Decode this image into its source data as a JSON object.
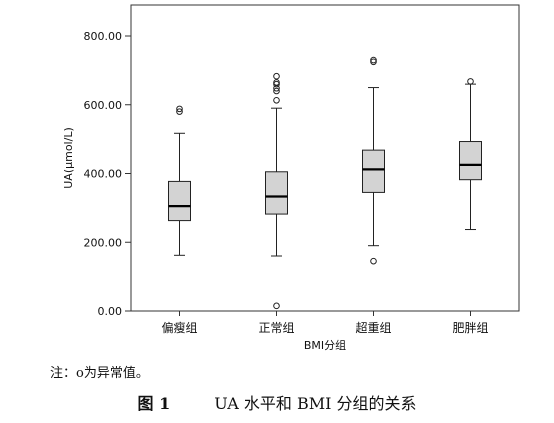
{
  "chart_data": {
    "type": "boxplot",
    "xlabel": "BMI分组",
    "ylabel": "UA(μmol/L)",
    "ylim": [
      0,
      900
    ],
    "yticks": [
      "0.00",
      "200.00",
      "400.00",
      "600.00",
      "800.00"
    ],
    "ytick_values": [
      0,
      200,
      400,
      600,
      800
    ],
    "categories": [
      "偏瘦组",
      "正常组",
      "超重组",
      "肥胖组"
    ],
    "box_color": "#d3d3d3",
    "boxes": [
      {
        "name": "偏瘦组",
        "whisker_low": 162,
        "q1": 263,
        "median": 305,
        "q3": 377,
        "whisker_high": 517,
        "outliers": [
          580,
          588
        ]
      },
      {
        "name": "正常组",
        "whisker_low": 160,
        "q1": 282,
        "median": 333,
        "q3": 405,
        "whisker_high": 590,
        "outliers": [
          613,
          640,
          648,
          660,
          665,
          683,
          15
        ]
      },
      {
        "name": "超重组",
        "whisker_low": 190,
        "q1": 345,
        "median": 412,
        "q3": 468,
        "whisker_high": 650,
        "outliers": [
          725,
          730,
          145
        ]
      },
      {
        "name": "肥胖组",
        "whisker_low": 237,
        "q1": 382,
        "median": 425,
        "q3": 493,
        "whisker_high": 660,
        "outliers": [
          668
        ]
      }
    ]
  },
  "note": "注：ο为异常值。",
  "caption": {
    "number": "图 1",
    "title_prefix": "UA 水平和 BMI 分组的关系"
  }
}
